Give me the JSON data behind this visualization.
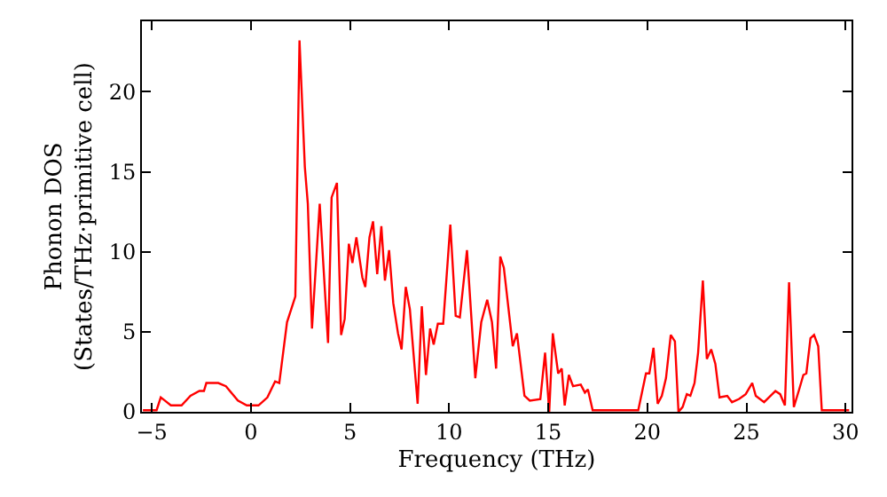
{
  "chart_data": {
    "type": "line",
    "xlabel": "Frequency (THz)",
    "ylabel": "Phonon DOS\n(States/THz·primitive cell)",
    "xlim": [
      -5.5,
      30.3
    ],
    "ylim": [
      0,
      24.4
    ],
    "xticks": [
      -5,
      0,
      5,
      10,
      15,
      20,
      25,
      30
    ],
    "yticks": [
      0,
      5,
      10,
      15,
      20
    ],
    "marker": "none",
    "line_style": "solid",
    "series": [
      {
        "color": "#ff0000",
        "x": [
          -5.45,
          -4.76,
          -4.55,
          -4.34,
          -4.04,
          -3.5,
          -3.05,
          -2.6,
          -2.37,
          -2.25,
          -1.65,
          -1.26,
          -0.66,
          -0.21,
          0.38,
          0.83,
          1.22,
          1.43,
          1.82,
          2.24,
          2.45,
          2.72,
          2.87,
          3.08,
          3.47,
          3.89,
          4.07,
          4.34,
          4.55,
          4.73,
          4.94,
          5.12,
          5.32,
          5.62,
          5.77,
          5.98,
          6.16,
          6.37,
          6.58,
          6.76,
          6.97,
          7.18,
          7.42,
          7.6,
          7.81,
          8.02,
          8.41,
          8.62,
          8.83,
          9.04,
          9.22,
          9.43,
          9.7,
          10.06,
          10.33,
          10.54,
          10.9,
          11.32,
          11.62,
          11.92,
          12.16,
          12.37,
          12.58,
          12.76,
          13.21,
          13.42,
          13.8,
          14.07,
          14.6,
          14.84,
          15.05,
          15.23,
          15.5,
          15.68,
          15.83,
          16.04,
          16.25,
          16.64,
          16.85,
          17.0,
          17.24,
          19.54,
          19.93,
          20.1,
          20.31,
          20.52,
          20.73,
          20.94,
          21.18,
          21.39,
          21.57,
          21.78,
          21.99,
          22.17,
          22.38,
          22.56,
          22.8,
          23.0,
          23.22,
          23.43,
          23.64,
          24.03,
          24.27,
          24.63,
          24.96,
          25.29,
          25.47,
          25.89,
          26.22,
          26.46,
          26.7,
          26.94,
          27.15,
          27.39,
          27.66,
          27.87,
          28.02,
          28.23,
          28.41,
          28.62,
          28.8,
          30.18
        ],
        "values": [
          0.1,
          0.1,
          0.9,
          0.7,
          0.4,
          0.4,
          1.0,
          1.3,
          1.3,
          1.8,
          1.8,
          1.6,
          0.7,
          0.4,
          0.4,
          0.9,
          1.9,
          1.8,
          5.6,
          7.2,
          23.2,
          15.3,
          13.0,
          5.2,
          13.0,
          4.3,
          13.4,
          14.3,
          4.8,
          5.8,
          10.5,
          9.3,
          10.9,
          8.4,
          7.8,
          10.9,
          11.9,
          8.6,
          11.6,
          8.2,
          10.1,
          6.8,
          4.9,
          3.9,
          7.8,
          6.4,
          0.5,
          6.6,
          2.3,
          5.2,
          4.2,
          5.5,
          5.5,
          11.7,
          6.0,
          5.9,
          10.1,
          2.1,
          5.6,
          7.0,
          5.6,
          2.7,
          9.7,
          9.0,
          4.1,
          4.9,
          1.0,
          0.7,
          0.8,
          3.7,
          0.0,
          4.9,
          2.4,
          2.7,
          0.4,
          2.3,
          1.6,
          1.7,
          1.2,
          1.4,
          0.1,
          0.1,
          2.4,
          2.4,
          4.0,
          0.5,
          1.0,
          2.1,
          4.8,
          4.4,
          0.0,
          0.3,
          1.1,
          1.0,
          1.8,
          3.7,
          8.2,
          3.3,
          3.9,
          3.0,
          0.9,
          1.0,
          0.6,
          0.8,
          1.1,
          1.8,
          1.0,
          0.6,
          1.0,
          1.3,
          1.1,
          0.4,
          8.1,
          0.3,
          1.4,
          2.3,
          2.4,
          4.6,
          4.8,
          4.1,
          0.1,
          0.1
        ]
      }
    ]
  }
}
